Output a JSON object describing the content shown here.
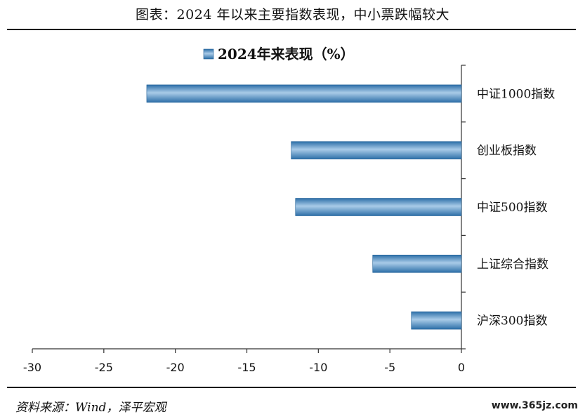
{
  "figure": {
    "title": "图表：2024 年以来主要指数表现，中小票跌幅较大",
    "source": "资料来源：Wind，泽平宏观",
    "watermark": "www.365jz.com"
  },
  "chart_data": {
    "type": "bar",
    "orientation": "horizontal",
    "categories": [
      "中证1000指数",
      "创业板指数",
      "中证500指数",
      "上证综合指数",
      "沪深300指数"
    ],
    "series": [
      {
        "name": "2024年来表现（%）",
        "values": [
          -22.0,
          -11.9,
          -11.6,
          -6.2,
          -3.5
        ]
      }
    ],
    "xlim": [
      -30,
      0
    ],
    "xticks": [
      -30,
      -25,
      -20,
      -15,
      -10,
      -5,
      0
    ],
    "legend_position": "top-center",
    "grid": false,
    "colors": {
      "bar_edge": "#1f5f96",
      "bar_mid": "#a9cbe8",
      "bar_dark": "#2d6fa8"
    }
  }
}
